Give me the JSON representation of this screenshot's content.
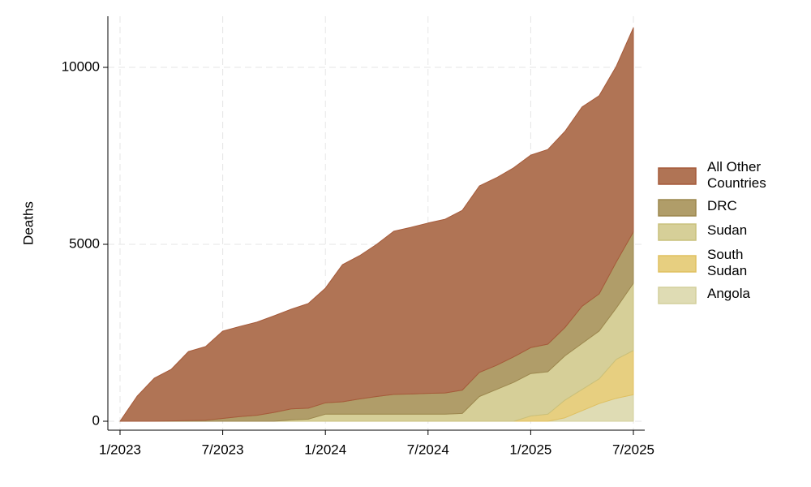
{
  "chart_data": {
    "type": "stacked_area",
    "y_label": "Deaths",
    "categories": [
      "1/2023",
      null,
      null,
      null,
      null,
      null,
      "7/2023",
      null,
      null,
      null,
      null,
      null,
      "1/2024",
      null,
      null,
      null,
      null,
      null,
      "7/2024",
      null,
      null,
      null,
      null,
      null,
      "1/2025",
      null,
      null,
      null,
      null,
      null,
      "7/2025"
    ],
    "ylim": [
      -252,
      11445
    ],
    "yticks": [
      0,
      5000,
      10000
    ],
    "grid": true,
    "series": [
      {
        "name": "All Other Countries",
        "color": "#b07455",
        "edge": "#a65a3a",
        "values": [
          0,
          710,
          1215,
          1460,
          1950,
          2080,
          2465,
          2550,
          2630,
          2730,
          2815,
          2955,
          3240,
          3875,
          4050,
          4300,
          4610,
          4710,
          4810,
          4910,
          5080,
          5270,
          5300,
          5340,
          5440,
          5500,
          5540,
          5630,
          5600,
          5530,
          5770
        ]
      },
      {
        "name": "DRC",
        "color": "#b09d69",
        "edge": "#9c874e",
        "values": [
          0,
          0,
          0,
          10,
          20,
          30,
          80,
          130,
          170,
          250,
          310,
          310,
          320,
          350,
          430,
          500,
          560,
          570,
          590,
          600,
          660,
          680,
          680,
          720,
          730,
          780,
          800,
          1050,
          1050,
          1300,
          1450
        ]
      },
      {
        "name": "Sudan",
        "color": "#d6cf98",
        "edge": "#c9c07c",
        "values": [
          0,
          0,
          0,
          0,
          0,
          0,
          0,
          0,
          0,
          0,
          40,
          60,
          200,
          200,
          200,
          200,
          200,
          200,
          200,
          200,
          220,
          700,
          900,
          1100,
          1200,
          1200,
          1250,
          1300,
          1350,
          1450,
          1900
        ]
      },
      {
        "name": "South Sudan",
        "color": "#e7cf80",
        "edge": "#e0c060",
        "values": [
          0,
          0,
          0,
          0,
          0,
          0,
          0,
          0,
          0,
          0,
          0,
          0,
          0,
          0,
          0,
          0,
          0,
          0,
          0,
          0,
          0,
          0,
          0,
          0,
          150,
          200,
          500,
          600,
          700,
          1100,
          1250
        ]
      },
      {
        "name": "Angola",
        "color": "#dfdcb4",
        "edge": "#d3cf9c",
        "values": [
          0,
          0,
          0,
          0,
          0,
          0,
          0,
          0,
          0,
          0,
          0,
          0,
          0,
          0,
          0,
          0,
          0,
          0,
          0,
          0,
          0,
          0,
          0,
          0,
          0,
          0,
          100,
          300,
          500,
          650,
          750
        ]
      }
    ]
  }
}
